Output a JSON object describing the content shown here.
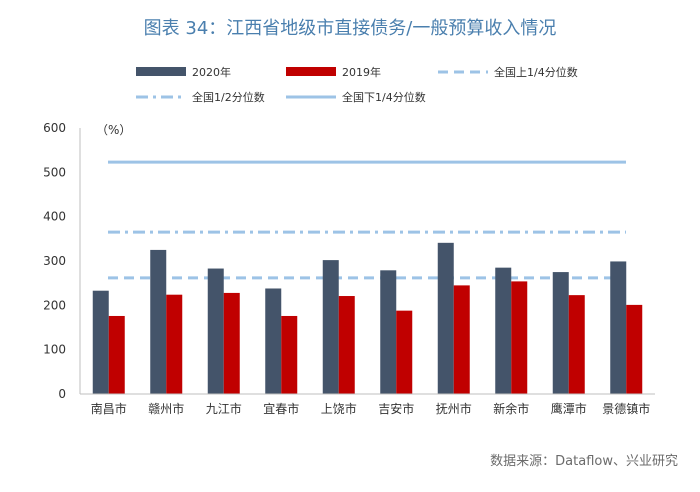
{
  "page": {
    "title": "图表 34：江西省地级市直接债务/一般预算收入情况",
    "source": "数据来源：Dataflow、兴业研究"
  },
  "colors": {
    "series_2020": "#44546a",
    "series_2019": "#c00000",
    "line_lower_quartile": "#9dc3e6",
    "line_median": "#9dc3e6",
    "line_upper_quartile": "#9dc3e6",
    "title": "#4a7fae"
  },
  "chart_data": {
    "type": "bar",
    "unit_label": "（%）",
    "categories": [
      "南昌市",
      "赣州市",
      "九江市",
      "宜春市",
      "上饶市",
      "吉安市",
      "抚州市",
      "新余市",
      "鹰潭市",
      "景德镇市"
    ],
    "series": [
      {
        "name": "2020年",
        "values": [
          233,
          325,
          283,
          238,
          302,
          279,
          341,
          285,
          275,
          299
        ]
      },
      {
        "name": "2019年",
        "values": [
          176,
          224,
          228,
          176,
          221,
          188,
          245,
          254,
          223,
          201
        ]
      }
    ],
    "reference_lines": [
      {
        "name": "全国上1/4分位数",
        "value": 262,
        "style": "dashed"
      },
      {
        "name": "全国1/2分位数",
        "value": 365,
        "style": "dash-dot"
      },
      {
        "name": "全国下1/4分位数",
        "value": 523,
        "style": "solid"
      }
    ],
    "ylim": [
      0,
      600
    ],
    "yticks": [
      0,
      100,
      200,
      300,
      400,
      500,
      600
    ],
    "grid": false,
    "legend_position": "top"
  }
}
